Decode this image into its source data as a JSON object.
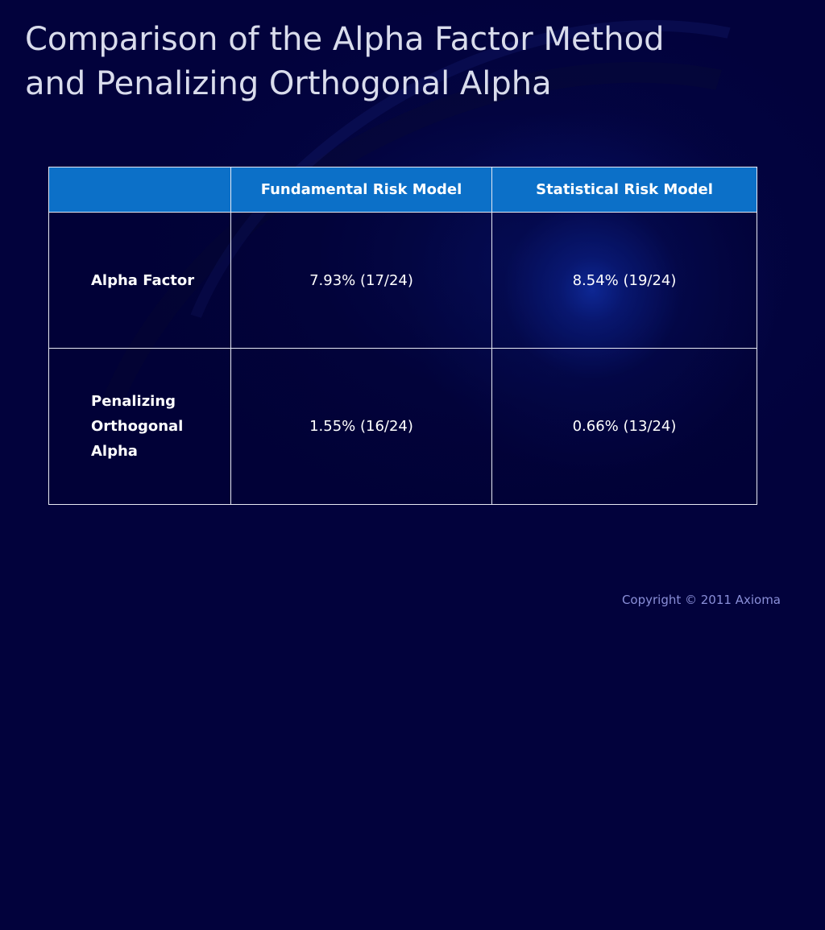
{
  "slide": {
    "title_lines": [
      "Comparison of the Alpha Factor Method",
      "and Penalizing Orthogonal Alpha"
    ],
    "copyright": "Copyright © 2011 Axioma"
  },
  "table": {
    "headers": [
      "",
      "Fundamental Risk Model",
      "Statistical Risk Model"
    ],
    "rows": [
      {
        "label": "Alpha Factor",
        "values": [
          "7.93% (17/24)",
          "8.54% (19/24)"
        ]
      },
      {
        "label_lines": [
          "Penalizing",
          "Orthogonal",
          "Alpha"
        ],
        "values": [
          "1.55% (16/24)",
          "0.66% (13/24)"
        ]
      }
    ]
  },
  "colors": {
    "background": "#02023c",
    "header_fill": "#0c70c8",
    "title_text": "#d9dcec",
    "copyright_text": "#8a8fd8"
  }
}
